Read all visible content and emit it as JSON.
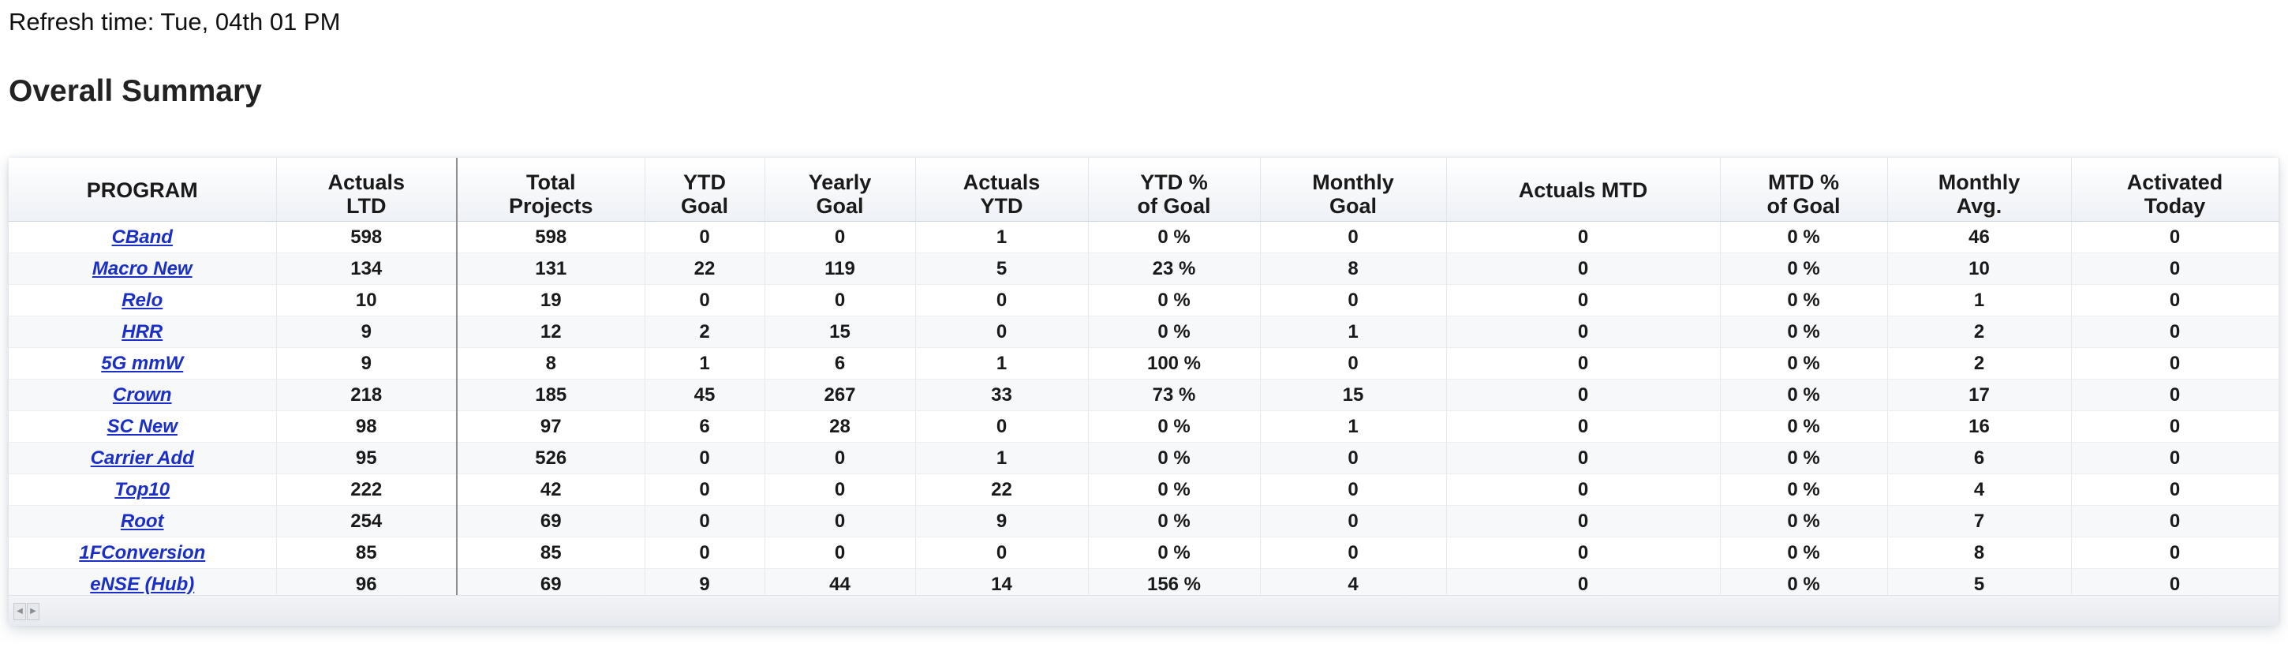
{
  "refresh_text": "Refresh time: Tue, 04th 01 PM",
  "title": "Overall Summary",
  "columns": [
    {
      "line1": "PROGRAM",
      "line2": ""
    },
    {
      "line1": "Actuals",
      "line2": "LTD"
    },
    {
      "line1": "Total",
      "line2": "Projects"
    },
    {
      "line1": "YTD",
      "line2": "Goal"
    },
    {
      "line1": "Yearly",
      "line2": "Goal"
    },
    {
      "line1": "Actuals",
      "line2": "YTD"
    },
    {
      "line1": "YTD %",
      "line2": "of Goal"
    },
    {
      "line1": "Monthly",
      "line2": "Goal"
    },
    {
      "line1": "Actuals MTD",
      "line2": ""
    },
    {
      "line1": "MTD %",
      "line2": "of Goal"
    },
    {
      "line1": "Monthly",
      "line2": "Avg."
    },
    {
      "line1": "Activated",
      "line2": "Today"
    }
  ],
  "rows": [
    {
      "program": "CBand",
      "cells": [
        "598",
        "598",
        "0",
        "0",
        "1",
        "0 %",
        "0",
        "0",
        "0 %",
        "46",
        "0"
      ]
    },
    {
      "program": "Macro New",
      "cells": [
        "134",
        "131",
        "22",
        "119",
        "5",
        "23 %",
        "8",
        "0",
        "0 %",
        "10",
        "0"
      ]
    },
    {
      "program": "Relo",
      "cells": [
        "10",
        "19",
        "0",
        "0",
        "0",
        "0 %",
        "0",
        "0",
        "0 %",
        "1",
        "0"
      ]
    },
    {
      "program": "HRR",
      "cells": [
        "9",
        "12",
        "2",
        "15",
        "0",
        "0 %",
        "1",
        "0",
        "0 %",
        "2",
        "0"
      ]
    },
    {
      "program": "5G mmW",
      "cells": [
        "9",
        "8",
        "1",
        "6",
        "1",
        "100 %",
        "0",
        "0",
        "0 %",
        "2",
        "0"
      ]
    },
    {
      "program": "Crown",
      "cells": [
        "218",
        "185",
        "45",
        "267",
        "33",
        "73 %",
        "15",
        "0",
        "0 %",
        "17",
        "0"
      ]
    },
    {
      "program": "SC New",
      "cells": [
        "98",
        "97",
        "6",
        "28",
        "0",
        "0 %",
        "1",
        "0",
        "0 %",
        "16",
        "0"
      ]
    },
    {
      "program": "Carrier Add",
      "cells": [
        "95",
        "526",
        "0",
        "0",
        "1",
        "0 %",
        "0",
        "0",
        "0 %",
        "6",
        "0"
      ]
    },
    {
      "program": "Top10",
      "cells": [
        "222",
        "42",
        "0",
        "0",
        "22",
        "0 %",
        "0",
        "0",
        "0 %",
        "4",
        "0"
      ]
    },
    {
      "program": "Root",
      "cells": [
        "254",
        "69",
        "0",
        "0",
        "9",
        "0 %",
        "0",
        "0",
        "0 %",
        "7",
        "0"
      ]
    },
    {
      "program": "1FConversion",
      "cells": [
        "85",
        "85",
        "0",
        "0",
        "0",
        "0 %",
        "0",
        "0",
        "0 %",
        "8",
        "0"
      ]
    },
    {
      "program": "eNSE (Hub)",
      "cells": [
        "96",
        "69",
        "9",
        "44",
        "14",
        "156 %",
        "4",
        "0",
        "0 %",
        "5",
        "0"
      ]
    }
  ],
  "scroll_icons": [
    "scroll-left-icon",
    "scroll-right-icon"
  ],
  "colors": {
    "link": "#1a2ec8",
    "header_bg": "#eef1f6",
    "row_alt": "#f7f8fa"
  }
}
